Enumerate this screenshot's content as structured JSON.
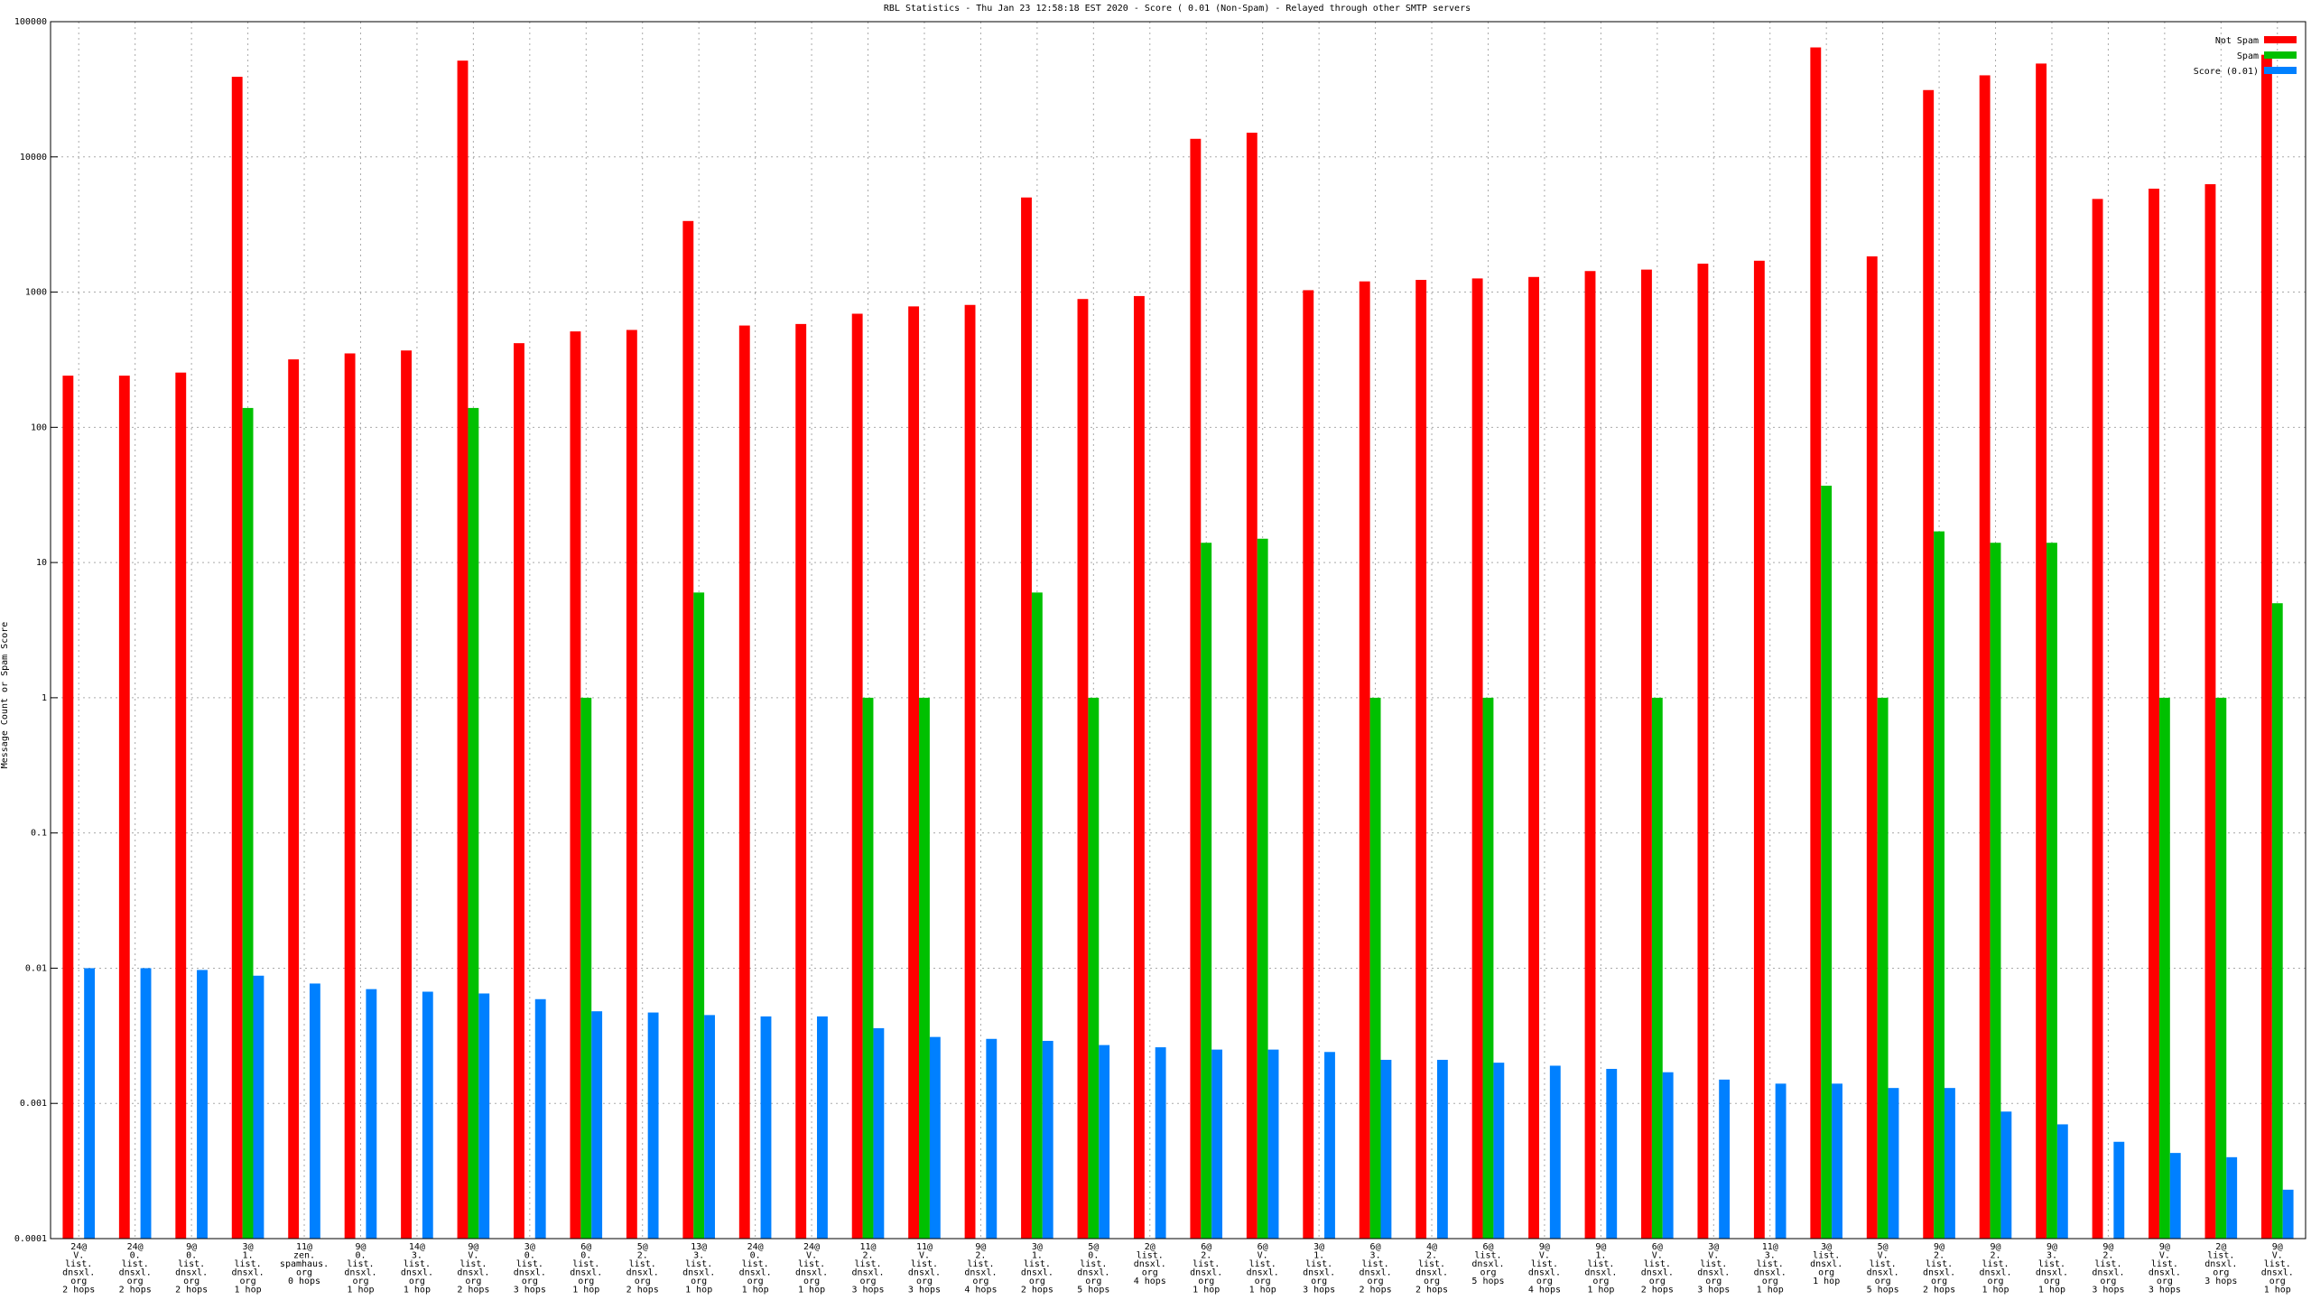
{
  "chart_data": {
    "type": "bar",
    "title": "RBL Statistics - Thu Jan 23 12:58:18 EST 2020 - Score ( 0.01 (Non-Spam) - Relayed through other SMTP servers",
    "y_label": "Message Count or Spam Score",
    "log_scale": true,
    "grid": true,
    "legend": "top-right",
    "ylim": [
      0.0001,
      100000
    ],
    "yticks": [
      0.0001,
      0.001,
      0.01,
      0.1,
      1,
      10,
      100,
      1000,
      10000,
      100000
    ],
    "categories": [
      [
        "24@",
        "V.",
        "list.",
        "dnsxl.",
        "org",
        "2 hops"
      ],
      [
        "24@",
        "0.",
        "list.",
        "dnsxl.",
        "org",
        "2 hops"
      ],
      [
        "9@",
        "0.",
        "list.",
        "dnsxl.",
        "org",
        "2 hops"
      ],
      [
        "3@",
        "1.",
        "list.",
        "dnsxl.",
        "org",
        "1 hop"
      ],
      [
        "11@",
        "zen.",
        "spamhaus.",
        "org",
        "0 hops"
      ],
      [
        "9@",
        "0.",
        "list.",
        "dnsxl.",
        "org",
        "1 hop"
      ],
      [
        "14@",
        "3.",
        "list.",
        "dnsxl.",
        "org",
        "1 hop"
      ],
      [
        "9@",
        "V.",
        "list.",
        "dnsxl.",
        "org",
        "2 hops"
      ],
      [
        "3@",
        "0.",
        "list.",
        "dnsxl.",
        "org",
        "3 hops"
      ],
      [
        "6@",
        "0.",
        "list.",
        "dnsxl.",
        "org",
        "1 hop"
      ],
      [
        "5@",
        "2.",
        "list.",
        "dnsxl.",
        "org",
        "2 hops"
      ],
      [
        "13@",
        "3.",
        "list.",
        "dnsxl.",
        "org",
        "1 hop"
      ],
      [
        "24@",
        "0.",
        "list.",
        "dnsxl.",
        "org",
        "1 hop"
      ],
      [
        "24@",
        "V.",
        "list.",
        "dnsxl.",
        "org",
        "1 hop"
      ],
      [
        "11@",
        "2.",
        "list.",
        "dnsxl.",
        "org",
        "3 hops"
      ],
      [
        "11@",
        "V.",
        "list.",
        "dnsxl.",
        "org",
        "3 hops"
      ],
      [
        "9@",
        "2.",
        "list.",
        "dnsxl.",
        "org",
        "4 hops"
      ],
      [
        "3@",
        "1.",
        "list.",
        "dnsxl.",
        "org",
        "2 hops"
      ],
      [
        "5@",
        "0.",
        "list.",
        "dnsxl.",
        "org",
        "5 hops"
      ],
      [
        "2@",
        "list.",
        "dnsxl.",
        "org",
        "4 hops"
      ],
      [
        "6@",
        "2.",
        "list.",
        "dnsxl.",
        "org",
        "1 hop"
      ],
      [
        "6@",
        "V.",
        "list.",
        "dnsxl.",
        "org",
        "1 hop"
      ],
      [
        "3@",
        "1.",
        "list.",
        "dnsxl.",
        "org",
        "3 hops"
      ],
      [
        "6@",
        "3.",
        "list.",
        "dnsxl.",
        "org",
        "2 hops"
      ],
      [
        "4@",
        "2.",
        "list.",
        "dnsxl.",
        "org",
        "2 hops"
      ],
      [
        "6@",
        "list.",
        "dnsxl.",
        "org",
        "5 hops"
      ],
      [
        "9@",
        "V.",
        "list.",
        "dnsxl.",
        "org",
        "4 hops"
      ],
      [
        "9@",
        "1.",
        "list.",
        "dnsxl.",
        "org",
        "1 hop"
      ],
      [
        "6@",
        "V.",
        "list.",
        "dnsxl.",
        "org",
        "2 hops"
      ],
      [
        "3@",
        "V.",
        "list.",
        "dnsxl.",
        "org",
        "3 hops"
      ],
      [
        "11@",
        "3.",
        "list.",
        "dnsxl.",
        "org",
        "1 hop"
      ],
      [
        "3@",
        "list.",
        "dnsxl.",
        "org",
        "1 hop"
      ],
      [
        "5@",
        "V.",
        "list.",
        "dnsxl.",
        "org",
        "5 hops"
      ],
      [
        "9@",
        "2.",
        "list.",
        "dnsxl.",
        "org",
        "2 hops"
      ],
      [
        "9@",
        "2.",
        "list.",
        "dnsxl.",
        "org",
        "1 hop"
      ],
      [
        "9@",
        "3.",
        "list.",
        "dnsxl.",
        "org",
        "1 hop"
      ],
      [
        "9@",
        "2.",
        "list.",
        "dnsxl.",
        "org",
        "3 hops"
      ],
      [
        "9@",
        "V.",
        "list.",
        "dnsxl.",
        "org",
        "3 hops"
      ],
      [
        "2@",
        "list.",
        "dnsxl.",
        "org",
        "3 hops"
      ],
      [
        "9@",
        "V.",
        "list.",
        "dnsxl.",
        "org",
        "1 hop"
      ]
    ],
    "series": [
      {
        "name": "Not Spam",
        "color": "#ff0000",
        "values": [
          241,
          241,
          254,
          39100,
          318,
          352,
          370,
          51500,
          419,
          512,
          525,
          3356,
          566,
          581,
          692,
          784,
          804,
          5010,
          889,
          935,
          13600,
          15100,
          1033,
          1200,
          1231,
          1262,
          1294,
          1431,
          1467,
          1622,
          1706,
          64500,
          1837,
          31200,
          40100,
          49000,
          4886,
          5820,
          6280,
          56900
        ]
      },
      {
        "name": "Spam",
        "color": "#00c000",
        "values": [
          null,
          null,
          null,
          139,
          null,
          null,
          null,
          139,
          null,
          1,
          null,
          6,
          null,
          null,
          1,
          1,
          null,
          6,
          1,
          null,
          14,
          15,
          null,
          1,
          null,
          1,
          null,
          null,
          1,
          null,
          null,
          37,
          1,
          17,
          14,
          14,
          null,
          1,
          1,
          5
        ]
      },
      {
        "name": "Score (0.01)",
        "color": "#0080ff",
        "values": [
          0.01,
          0.01,
          0.0097,
          0.0088,
          0.0077,
          0.007,
          0.0067,
          0.0065,
          0.0059,
          0.0048,
          0.0047,
          0.0045,
          0.0044,
          0.0044,
          0.0036,
          0.0031,
          0.003,
          0.0029,
          0.0027,
          0.0026,
          0.0025,
          0.0025,
          0.0024,
          0.0021,
          0.0021,
          0.002,
          0.0019,
          0.0018,
          0.0017,
          0.0015,
          0.0014,
          0.0014,
          0.0013,
          0.0013,
          0.00087,
          0.0007,
          0.00052,
          0.00043,
          0.0004,
          0.00023
        ]
      }
    ]
  }
}
